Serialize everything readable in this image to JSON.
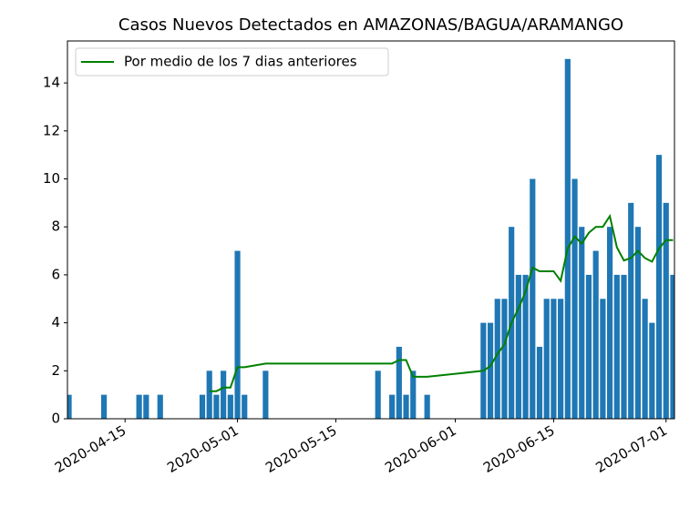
{
  "chart_data": {
    "type": "bar",
    "title": "Casos Nuevos Detectados en AMAZONAS/BAGUA/ARAMANGO",
    "x": [
      "2020-04-07",
      "2020-04-12",
      "2020-04-17",
      "2020-04-18",
      "2020-04-20",
      "2020-04-26",
      "2020-04-27",
      "2020-04-28",
      "2020-04-29",
      "2020-04-30",
      "2020-05-01",
      "2020-05-02",
      "2020-05-05",
      "2020-05-21",
      "2020-05-23",
      "2020-05-24",
      "2020-05-25",
      "2020-05-26",
      "2020-05-28",
      "2020-06-05",
      "2020-06-06",
      "2020-06-07",
      "2020-06-08",
      "2020-06-09",
      "2020-06-10",
      "2020-06-11",
      "2020-06-12",
      "2020-06-13",
      "2020-06-14",
      "2020-06-15",
      "2020-06-16",
      "2020-06-17",
      "2020-06-18",
      "2020-06-19",
      "2020-06-20",
      "2020-06-21",
      "2020-06-22",
      "2020-06-23",
      "2020-06-24",
      "2020-06-25",
      "2020-06-26",
      "2020-06-27",
      "2020-06-28",
      "2020-06-29",
      "2020-06-30",
      "2020-07-01",
      "2020-07-02"
    ],
    "series": [
      {
        "type": "bar",
        "color": "#1f77b4",
        "values": [
          1,
          1,
          1,
          1,
          1,
          1,
          2,
          1,
          2,
          1,
          7,
          1,
          2,
          2,
          1,
          3,
          1,
          2,
          1,
          4,
          4,
          5,
          5,
          8,
          6,
          6,
          10,
          3,
          5,
          5,
          5,
          15,
          10,
          8,
          6,
          7,
          5,
          8,
          6,
          6,
          9,
          8,
          5,
          4,
          11,
          9,
          6
        ]
      },
      {
        "type": "line",
        "name": "Por medio de los 7 dias anteriores",
        "color": "#008000",
        "values": [
          null,
          null,
          null,
          null,
          null,
          null,
          1.15,
          1.15,
          1.3,
          1.3,
          2.15,
          2.15,
          2.3,
          2.3,
          2.3,
          2.45,
          2.45,
          1.75,
          1.75,
          2.0,
          2.2,
          2.7,
          3.1,
          4.0,
          4.6,
          5.3,
          6.3,
          6.15,
          6.15,
          6.15,
          5.75,
          7.1,
          7.6,
          7.3,
          7.75,
          8.0,
          8.0,
          8.45,
          7.15,
          6.6,
          6.7,
          7.0,
          6.7,
          6.55,
          7.1,
          7.45,
          7.45
        ]
      }
    ],
    "xlim": [
      "2020-04-07",
      "2020-07-02"
    ],
    "xticks": [
      "2020-04-15",
      "2020-05-01",
      "2020-05-15",
      "2020-06-01",
      "2020-06-15",
      "2020-07-01"
    ],
    "ylim": [
      0,
      15.75
    ],
    "yticks": [
      0,
      2,
      4,
      6,
      8,
      10,
      12,
      14
    ],
    "legend": "upper-left"
  }
}
